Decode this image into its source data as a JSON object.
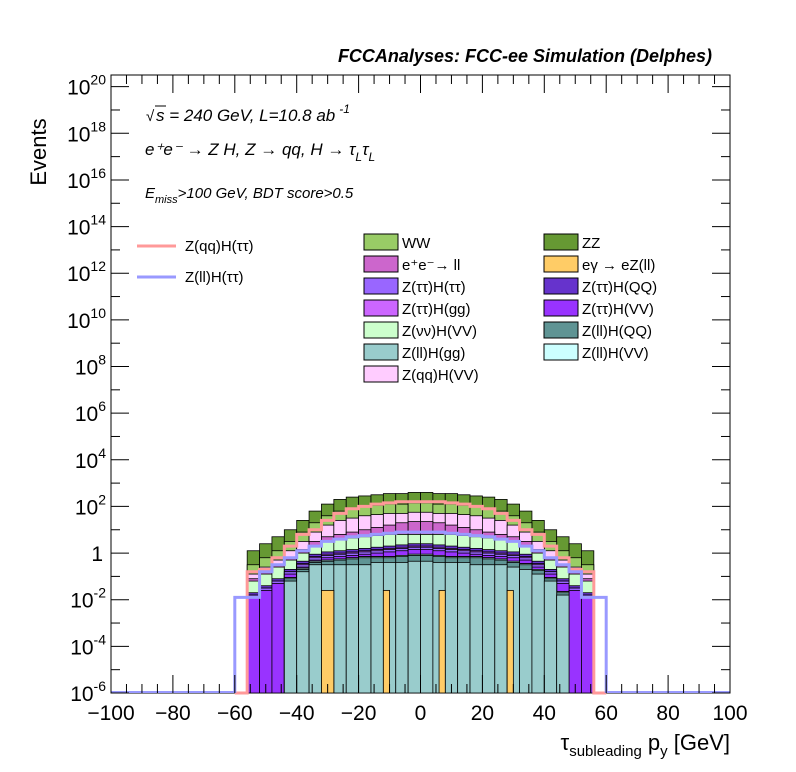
{
  "header": {
    "title": "FCCAnalyses: FCC-ee Simulation (Delphes)"
  },
  "annotations": {
    "sqrt_s": "s",
    "energy_lumi": " = 240 GeV, L=10.8 ab",
    "lumi_exp": "-1",
    "process": "e⁺e⁻ → Z H, Z → qq, H → τ",
    "process_sub1": "L",
    "process_tau2": "τ",
    "process_sub2": "L",
    "cut_E": "E",
    "cut_sub": "miss",
    "cut_rest": ">100 GeV, BDT score>0.5"
  },
  "chart_data": {
    "type": "bar",
    "title": "",
    "xlabel": "τ",
    "xlabel_sub": "subleading",
    "xlabel_rest": " p",
    "xlabel_sub2": "y",
    "xlabel_unit": " [GeV]",
    "ylabel": "Events",
    "xlim": [
      -100,
      100
    ],
    "ylim_log10": [
      -6,
      20.5
    ],
    "yscale": "log",
    "x_ticks": [
      -100,
      -80,
      -60,
      -40,
      -20,
      0,
      20,
      40,
      60,
      80,
      100
    ],
    "y_tick_labels": [
      {
        "exp": 20,
        "label": "10",
        "sup": "20"
      },
      {
        "exp": 18,
        "label": "10",
        "sup": "18"
      },
      {
        "exp": 16,
        "label": "10",
        "sup": "16"
      },
      {
        "exp": 14,
        "label": "10",
        "sup": "14"
      },
      {
        "exp": 12,
        "label": "10",
        "sup": "12"
      },
      {
        "exp": 10,
        "label": "10",
        "sup": "10"
      },
      {
        "exp": 8,
        "label": "10",
        "sup": "8"
      },
      {
        "exp": 6,
        "label": "10",
        "sup": "6"
      },
      {
        "exp": 4,
        "label": "10",
        "sup": "4"
      },
      {
        "exp": 2,
        "label": "10",
        "sup": "2"
      },
      {
        "exp": 0,
        "label": "1",
        "sup": ""
      },
      {
        "exp": -2,
        "label": "10",
        "sup": "-2"
      },
      {
        "exp": -4,
        "label": "10",
        "sup": "-4"
      },
      {
        "exp": -6,
        "label": "10",
        "sup": "-6"
      }
    ],
    "bin_edges": [
      -56,
      -52,
      -48,
      -44,
      -40,
      -36,
      -32,
      -28,
      -24,
      -20,
      -16,
      -12,
      -8,
      -4,
      0,
      4,
      8,
      12,
      16,
      20,
      24,
      28,
      32,
      36,
      40,
      44,
      48,
      52,
      56
    ],
    "stack_order_bottom_to_top": [
      "Z(ll)H(gg)",
      "Z(ll)H(QQ)",
      "Z(ll)H(VV)",
      "eγ → eZ(ll)",
      "Z(ττ)H(VV)",
      "Z(ττ)H(ττ)",
      "Z(ττ)H(gg)",
      "Z(ττ)H(QQ)",
      "Z(νν)H(VV)",
      "e⁺e⁻→ ll",
      "Z(qq)H(VV)",
      "WW",
      "ZZ"
    ],
    "stack_tops_log10": [
      {
        "name": "Z(ll)H(gg)",
        "color": "#99cccc",
        "values": [
          -6,
          -6,
          -6,
          -1.2,
          -0.8,
          -0.5,
          -0.5,
          -0.5,
          -0.5,
          -0.5,
          -0.4,
          -0.4,
          -0.4,
          -0.35,
          -0.35,
          -0.4,
          -0.4,
          -0.4,
          -0.5,
          -0.5,
          -0.5,
          -0.6,
          -0.7,
          -0.9,
          -1.2,
          -1.8,
          -6,
          -6
        ]
      },
      {
        "name": "Z(ll)H(QQ)",
        "color": "#5f9494",
        "values": [
          -6,
          -6,
          -6,
          -1.1,
          -0.7,
          -0.4,
          -0.35,
          -0.3,
          -0.25,
          -0.2,
          -0.2,
          -0.2,
          -0.15,
          -0.1,
          -0.1,
          -0.15,
          -0.2,
          -0.2,
          -0.2,
          -0.25,
          -0.3,
          -0.4,
          -0.5,
          -0.75,
          -1.1,
          -1.7,
          -6,
          -6
        ]
      },
      {
        "name": "Z(ll)H(VV)",
        "color": "#ccffff",
        "values": [
          -6,
          -6,
          -6,
          -1.05,
          -0.65,
          -0.35,
          -0.3,
          -0.25,
          -0.2,
          -0.15,
          -0.15,
          -0.15,
          -0.1,
          -0.05,
          -0.05,
          -0.1,
          -0.15,
          -0.15,
          -0.15,
          -0.2,
          -0.25,
          -0.35,
          -0.45,
          -0.7,
          -1.05,
          -1.65,
          -6,
          -6
        ]
      },
      {
        "name": "eγ → eZ(ll)",
        "color": "#ffcc66",
        "values": [
          -6,
          -6,
          -6,
          -1.05,
          -0.65,
          -0.35,
          -0.3,
          -0.25,
          -0.2,
          -0.15,
          -0.15,
          -0.15,
          -0.1,
          -0.05,
          -0.05,
          -0.1,
          -0.15,
          -0.15,
          -0.15,
          -0.2,
          -0.25,
          -0.35,
          -0.45,
          -0.7,
          -1.05,
          -1.65,
          -6,
          -6
        ]
      },
      {
        "name": "Z(ττ)H(VV)",
        "color": "#9933ff",
        "values": [
          -1.9,
          -1.6,
          -1.3,
          -0.9,
          -0.6,
          -0.3,
          -0.2,
          -0.15,
          -0.1,
          -0.05,
          0,
          0.05,
          0.1,
          0.15,
          0.15,
          0.1,
          0.05,
          0,
          -0.05,
          -0.1,
          -0.15,
          -0.2,
          -0.3,
          -0.6,
          -0.9,
          -1.3,
          -1.6,
          -1.9
        ]
      },
      {
        "name": "Z(ττ)H(ττ)",
        "color": "#9966ff",
        "values": [
          -1.8,
          -1.5,
          -1.2,
          -0.8,
          -0.5,
          -0.2,
          -0.1,
          -0.05,
          0,
          0.05,
          0.1,
          0.15,
          0.2,
          0.25,
          0.25,
          0.2,
          0.15,
          0.1,
          0.05,
          0,
          -0.05,
          -0.1,
          -0.2,
          -0.5,
          -0.8,
          -1.2,
          -1.5,
          -1.8
        ]
      },
      {
        "name": "Z(ττ)H(gg)",
        "color": "#cc66ff",
        "values": [
          -1.8,
          -1.5,
          -1.2,
          -0.8,
          -0.45,
          -0.15,
          -0.05,
          0,
          0.05,
          0.1,
          0.15,
          0.2,
          0.25,
          0.3,
          0.3,
          0.25,
          0.2,
          0.15,
          0.1,
          0.05,
          0,
          -0.05,
          -0.15,
          -0.45,
          -0.8,
          -1.2,
          -1.5,
          -1.8
        ]
      },
      {
        "name": "Z(ττ)H(QQ)",
        "color": "#6633cc",
        "values": [
          -1.7,
          -1.4,
          -1.1,
          -0.7,
          -0.35,
          -0.05,
          0.05,
          0.1,
          0.15,
          0.2,
          0.25,
          0.3,
          0.35,
          0.4,
          0.4,
          0.35,
          0.3,
          0.25,
          0.2,
          0.15,
          0.1,
          0.05,
          -0.05,
          -0.35,
          -0.7,
          -1.1,
          -1.4,
          -1.7
        ]
      },
      {
        "name": "Z(νν)H(VV)",
        "color": "#ccffcc",
        "values": [
          -1.2,
          -0.9,
          -0.6,
          -0.3,
          0,
          0.3,
          0.5,
          0.6,
          0.65,
          0.7,
          0.75,
          0.8,
          0.8,
          0.8,
          0.8,
          0.8,
          0.8,
          0.75,
          0.7,
          0.65,
          0.6,
          0.5,
          0.3,
          0,
          -0.3,
          -0.6,
          -0.9,
          -1.2
        ]
      },
      {
        "name": "e⁺e⁻→ ll",
        "color": "#cc66cc",
        "values": [
          -1.1,
          -0.8,
          -0.5,
          -0.2,
          0.15,
          0.5,
          0.7,
          0.8,
          0.9,
          1.0,
          1.1,
          1.2,
          1.3,
          1.35,
          1.35,
          1.3,
          1.2,
          1.1,
          1.0,
          0.9,
          0.8,
          0.7,
          0.5,
          0.15,
          -0.2,
          -0.5,
          -0.8,
          -1.1
        ]
      },
      {
        "name": "Z(qq)H(VV)",
        "color": "#ffccff",
        "values": [
          -0.9,
          -0.6,
          -0.3,
          0.1,
          0.5,
          0.9,
          1.2,
          1.4,
          1.5,
          1.6,
          1.65,
          1.7,
          1.7,
          1.75,
          1.75,
          1.7,
          1.7,
          1.65,
          1.6,
          1.5,
          1.4,
          1.2,
          0.9,
          0.5,
          0.1,
          -0.3,
          -0.6,
          -0.9
        ]
      },
      {
        "name": "WW",
        "color": "#99cc66",
        "values": [
          -0.5,
          -0.2,
          0.1,
          0.5,
          0.9,
          1.3,
          1.6,
          1.8,
          1.9,
          2.0,
          2.05,
          2.1,
          2.1,
          2.15,
          2.15,
          2.1,
          2.1,
          2.05,
          2.0,
          1.9,
          1.8,
          1.6,
          1.3,
          0.9,
          0.5,
          0.1,
          -0.2,
          -0.5
        ]
      },
      {
        "name": "ZZ",
        "color": "#669933",
        "values": [
          0.1,
          0.4,
          0.7,
          1.0,
          1.4,
          1.8,
          2.1,
          2.3,
          2.4,
          2.45,
          2.5,
          2.55,
          2.55,
          2.6,
          2.6,
          2.55,
          2.55,
          2.5,
          2.45,
          2.4,
          2.3,
          2.1,
          1.8,
          1.4,
          1.0,
          0.7,
          0.4,
          0.1
        ]
      }
    ],
    "signal_bin_edges": [
      -60,
      -56,
      -52,
      -48,
      -44,
      -40,
      -36,
      -32,
      -28,
      -24,
      -20,
      -16,
      -12,
      -8,
      -4,
      0,
      4,
      8,
      12,
      16,
      20,
      24,
      28,
      32,
      36,
      40,
      44,
      48,
      52,
      56,
      60
    ],
    "signals": [
      {
        "name": "Z(qq)H(ττ)",
        "color": "#ff9999",
        "values_log10": [
          -6,
          -0.8,
          -0.7,
          -0.2,
          0.3,
          0.8,
          1.0,
          1.4,
          1.7,
          1.9,
          2.0,
          2.1,
          2.15,
          2.2,
          2.2,
          2.2,
          2.2,
          2.15,
          2.1,
          2.0,
          1.9,
          1.7,
          1.4,
          1.0,
          0.8,
          0.3,
          -0.2,
          -0.7,
          -0.8,
          -6
        ]
      },
      {
        "name": "Z(ll)H(ττ)",
        "color": "#9999ff",
        "values_log10": [
          -1.9,
          -1.9,
          -0.8,
          -0.5,
          -0.2,
          0.1,
          0.3,
          0.5,
          0.6,
          0.7,
          0.75,
          0.8,
          0.85,
          0.9,
          0.9,
          0.9,
          0.9,
          0.85,
          0.8,
          0.75,
          0.7,
          0.6,
          0.5,
          0.3,
          0.1,
          -0.2,
          -0.5,
          -0.8,
          -1.9,
          -1.9
        ]
      }
    ],
    "legend": {
      "signals": [
        {
          "name": "Z(qq)H(ττ)",
          "color": "#ff9999"
        },
        {
          "name": "Z(ll)H(ττ)",
          "color": "#9999ff"
        }
      ],
      "col1": [
        {
          "name": "WW",
          "color": "#99cc66"
        },
        {
          "name": "e⁺e⁻→ ll",
          "color": "#cc66cc"
        },
        {
          "name": "Z(ττ)H(ττ)",
          "color": "#9966ff"
        },
        {
          "name": "Z(ττ)H(gg)",
          "color": "#cc66ff"
        },
        {
          "name": "Z(νν)H(VV)",
          "color": "#ccffcc"
        },
        {
          "name": "Z(ll)H(gg)",
          "color": "#99cccc"
        },
        {
          "name": "Z(qq)H(VV)",
          "color": "#ffccff"
        }
      ],
      "col2": [
        {
          "name": "ZZ",
          "color": "#669933"
        },
        {
          "name": "eγ → eZ(ll)",
          "color": "#ffcc66"
        },
        {
          "name": "Z(ττ)H(QQ)",
          "color": "#6633cc"
        },
        {
          "name": "Z(ττ)H(VV)",
          "color": "#9933ff"
        },
        {
          "name": "Z(ll)H(QQ)",
          "color": "#5f9494"
        },
        {
          "name": "Z(ll)H(VV)",
          "color": "#ccffff"
        }
      ]
    },
    "narrow_bins": [
      {
        "name": "eγ → eZ(ll)",
        "color": "#ffcc66",
        "x": [
          -32,
          -28
        ],
        "top_log10": -1.6
      },
      {
        "name": "eγ → eZ(ll)",
        "color": "#ffcc66",
        "x": [
          -12,
          -10
        ],
        "top_log10": -1.6
      },
      {
        "name": "eγ → eZ(ll)",
        "color": "#ffcc66",
        "x": [
          6,
          8
        ],
        "top_log10": -1.6
      },
      {
        "name": "eγ → eZ(ll)",
        "color": "#ffcc66",
        "x": [
          28,
          30
        ],
        "top_log10": -1.6
      }
    ]
  }
}
